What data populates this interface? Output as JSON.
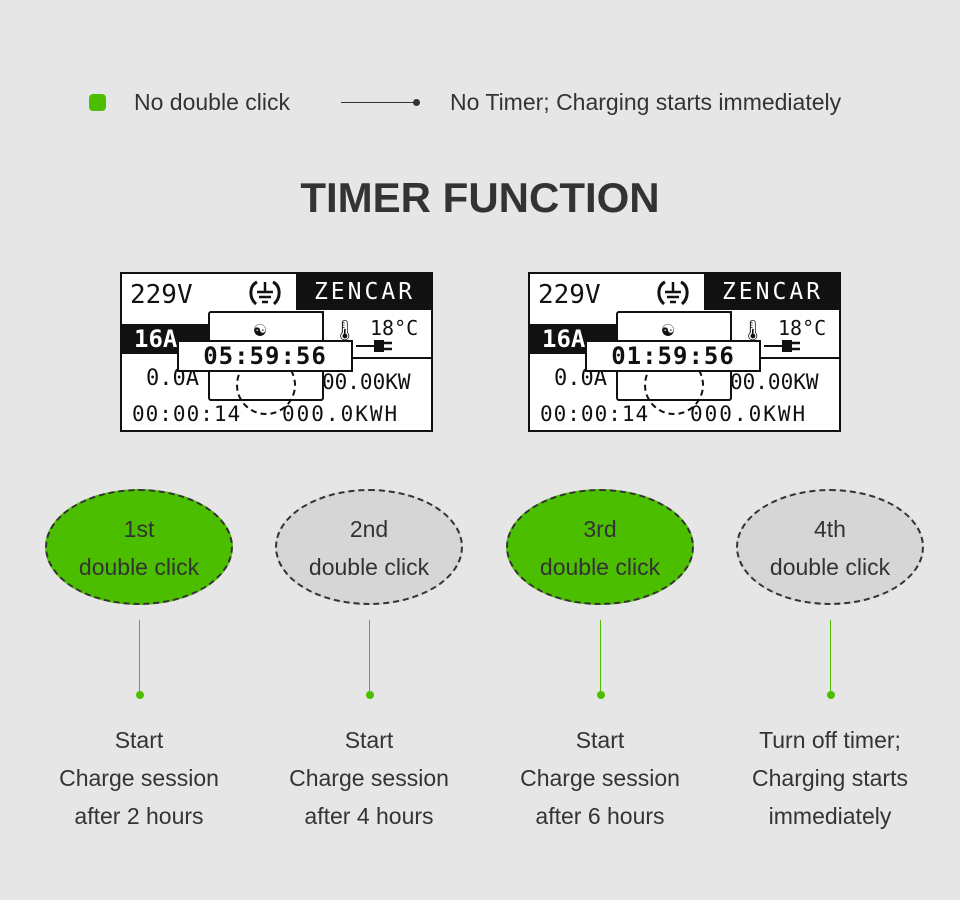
{
  "legend": {
    "marker_color": "#4cbe00",
    "condition": "No double click",
    "result": "No Timer; Charging starts immediately"
  },
  "title": "TIMER FUNCTION",
  "displays": [
    {
      "voltage": "229V",
      "brand": "ZENCAR",
      "current_limit": "16A",
      "temperature": "18°C",
      "timer": "05:59:56",
      "current": "0.0A",
      "power": "00.00KW",
      "elapsed": "00:00:14",
      "energy": "000.0KWH"
    },
    {
      "voltage": "229V",
      "brand": "ZENCAR",
      "current_limit": "16A",
      "temperature": "18°C",
      "timer": "01:59:56",
      "current": "0.0A",
      "power": "00.00KW",
      "elapsed": "00:00:14",
      "energy": "000.0KWH"
    }
  ],
  "steps": [
    {
      "line1": "1st",
      "line2": "double click",
      "active": true,
      "desc": [
        "Start",
        "Charge session",
        "after 2 hours"
      ]
    },
    {
      "line1": "2nd",
      "line2": "double click",
      "active": false,
      "desc": [
        "Start",
        "Charge session",
        "after 4 hours"
      ]
    },
    {
      "line1": "3rd",
      "line2": "double click",
      "active": true,
      "desc": [
        "Start",
        "Charge session",
        "after 6 hours"
      ]
    },
    {
      "line1": "4th",
      "line2": "double click",
      "active": false,
      "desc": [
        "Turn off timer;",
        "Charging starts",
        "immediately"
      ]
    }
  ],
  "colors": {
    "accent": "#4cbe00",
    "inactive": "#d6d6d6",
    "background": "#e6e6e6"
  }
}
